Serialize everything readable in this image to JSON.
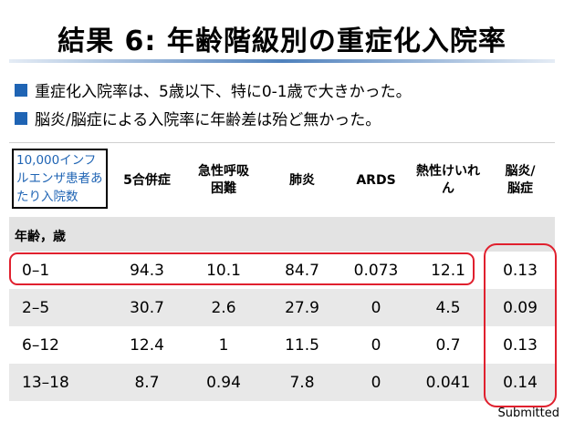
{
  "slide": {
    "title": "結果 6: 年齢階級別の重症化入院率",
    "bullets": [
      "重症化入院率は、5歳以下、特に0-1歳で大きかった。",
      "脳炎/脳症による入院率に年齢差は殆ど無かった。"
    ],
    "footer": "Submitted"
  },
  "table": {
    "header_first": "10,000インフルエンザ患者あたり入院数",
    "headers": [
      "5合併症",
      "急性呼吸困難",
      "肺炎",
      "ARDS",
      "熱性けいれん",
      "脳炎/脳症"
    ],
    "section_label": "年齢，歳",
    "rows": [
      {
        "age": "0–1",
        "values": [
          "94.3",
          "10.1",
          "84.7",
          "0.073",
          "12.1",
          "0.13"
        ]
      },
      {
        "age": "2–5",
        "values": [
          "30.7",
          "2.6",
          "27.9",
          "0",
          "4.5",
          "0.09"
        ]
      },
      {
        "age": "6–12",
        "values": [
          "12.4",
          "1",
          "11.5",
          "0",
          "0.7",
          "0.13"
        ]
      },
      {
        "age": "13–18",
        "values": [
          "8.7",
          "0.94",
          "7.8",
          "0",
          "0.041",
          "0.14"
        ]
      }
    ]
  },
  "colors": {
    "accent_blue": "#1f64b4",
    "highlight_red": "#e0202e",
    "row_shading": "#e8e8e8"
  }
}
